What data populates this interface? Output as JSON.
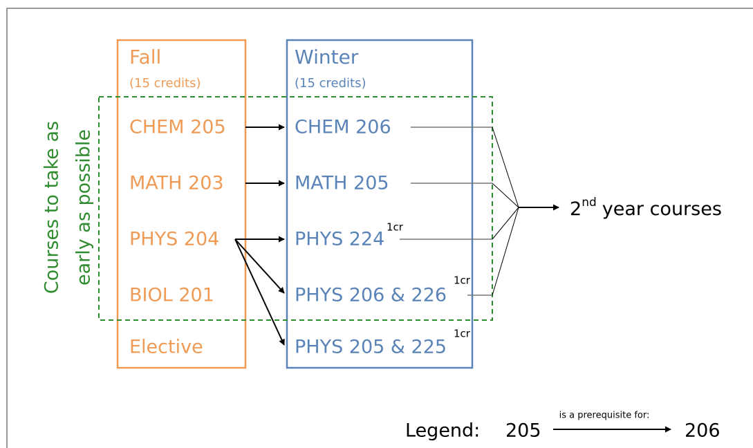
{
  "fall": {
    "title": "Fall",
    "credits": "(15 credits)",
    "courses": [
      "CHEM 205",
      "MATH 203",
      "PHYS 204",
      "BIOL 201",
      "Elective"
    ]
  },
  "winter": {
    "title": "Winter",
    "credits": "(15 credits)",
    "courses": [
      {
        "label": "CHEM 206"
      },
      {
        "label": "MATH 205"
      },
      {
        "label": "PHYS 224",
        "note": "1cr"
      },
      {
        "label": "PHYS 206 & 226",
        "note": "1cr"
      },
      {
        "label": "PHYS 205 & 225",
        "note": "1cr"
      }
    ]
  },
  "group_label": [
    "Courses to take as",
    "early as possible"
  ],
  "target": {
    "number": "2",
    "suffix": "nd",
    "text": "year courses"
  },
  "legend": {
    "title": "Legend:",
    "from": "205",
    "relation": "is a prerequisite for:",
    "to": "206"
  }
}
